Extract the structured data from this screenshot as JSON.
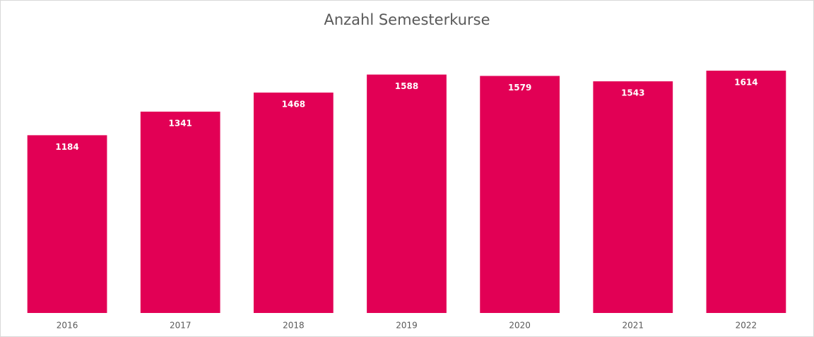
{
  "chart_data": {
    "type": "bar",
    "title": "Anzahl Semesterkurse",
    "categories": [
      "2016",
      "2017",
      "2018",
      "2019",
      "2020",
      "2021",
      "2022"
    ],
    "values": [
      1184,
      1341,
      1468,
      1588,
      1579,
      1543,
      1614
    ],
    "color": "#e20055",
    "ylim": [
      0,
      1800
    ]
  }
}
